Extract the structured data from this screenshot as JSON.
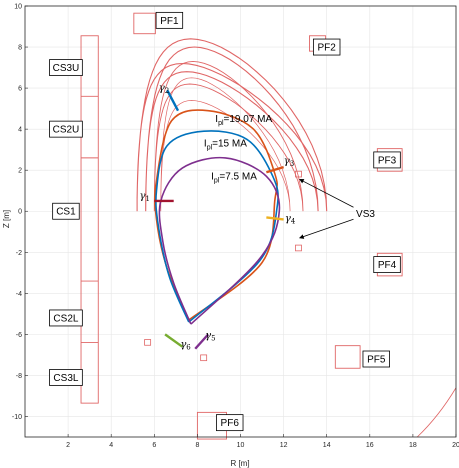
{
  "axes": {
    "xlabel": "R [m]",
    "ylabel": "Z [m]",
    "xlim": [
      0,
      20
    ],
    "ylim": [
      -11,
      10
    ],
    "xticks": [
      2,
      4,
      6,
      8,
      10,
      12,
      14,
      16,
      18,
      20
    ],
    "yticks": [
      -10,
      -8,
      -6,
      -4,
      -2,
      0,
      2,
      4,
      6,
      8,
      10
    ],
    "grid": true
  },
  "coils": [
    {
      "name": "CS3U",
      "lx": 1.9,
      "ly": 7.0
    },
    {
      "name": "CS2U",
      "lx": 1.9,
      "ly": 4.0
    },
    {
      "name": "CS1",
      "lx": 1.9,
      "ly": 0.0
    },
    {
      "name": "CS2L",
      "lx": 1.9,
      "ly": -5.2
    },
    {
      "name": "CS3L",
      "lx": 1.9,
      "ly": -8.1
    },
    {
      "name": "PF1",
      "lx": 6.7,
      "ly": 9.3
    },
    {
      "name": "PF2",
      "lx": 14.0,
      "ly": 8.0
    },
    {
      "name": "PF3",
      "lx": 16.8,
      "ly": 2.5
    },
    {
      "name": "PF4",
      "lx": 16.8,
      "ly": -2.6
    },
    {
      "name": "PF5",
      "lx": 16.3,
      "ly": -7.2
    },
    {
      "name": "PF6",
      "lx": 9.5,
      "ly": -10.3
    }
  ],
  "plasma_currents": [
    {
      "label_main": "I",
      "label_sub": "pl",
      "label_value": "=19.07 MA",
      "color": "#d95319"
    },
    {
      "label_main": "I",
      "label_sub": "pl",
      "label_value": "=15 MA",
      "color": "#0072bd"
    },
    {
      "label_main": "I",
      "label_sub": "pl",
      "label_value": "=7.5 MA",
      "color": "#7e2f8e"
    }
  ],
  "gammas": [
    {
      "sym": "γ",
      "idx": "1",
      "color": "#a2142f"
    },
    {
      "sym": "γ",
      "idx": "2",
      "color": "#0072bd"
    },
    {
      "sym": "γ",
      "idx": "3",
      "color": "#d95319"
    },
    {
      "sym": "γ",
      "idx": "4",
      "color": "#edb120"
    },
    {
      "sym": "γ",
      "idx": "5",
      "color": "#7e2f8e"
    },
    {
      "sym": "γ",
      "idx": "6",
      "color": "#77ac30"
    }
  ],
  "vs3_label": "VS3",
  "colors": {
    "coil": "#e06666",
    "grid": "#e6e6e6",
    "axis": "#262626"
  }
}
